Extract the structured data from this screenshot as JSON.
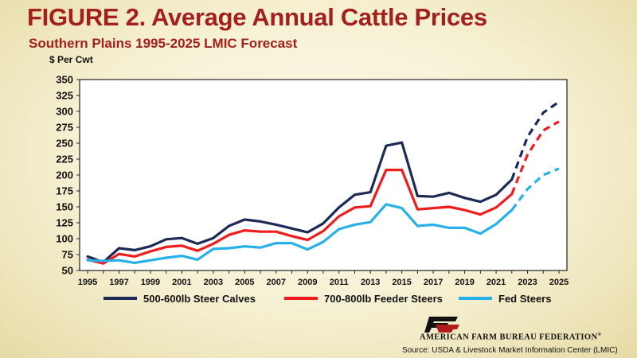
{
  "title": "FIGURE 2. Average Annual Cattle Prices",
  "subtitle": "Southern Plains 1995-2025  LMIC Forecast",
  "organization": "AMERICAN FARM BUREAU FEDERATION",
  "registered_mark": "®",
  "logo_text": "FB",
  "source": "Source:  USDA & Livestock Market Information Center (LMIC)",
  "colors": {
    "title": "#a3201d",
    "steer_calves": "#1b2a57",
    "feeder_steers": "#ee1c1c",
    "fed_steers": "#28b0e8"
  },
  "chart_data": {
    "type": "line",
    "ylabel": "$ Per Cwt",
    "xlabel": "",
    "ylim": [
      50,
      350
    ],
    "xlim": [
      1995,
      2025
    ],
    "yticks": [
      50,
      75,
      100,
      125,
      150,
      175,
      200,
      225,
      250,
      275,
      300,
      325,
      350
    ],
    "xticks": [
      1995,
      1997,
      1999,
      2001,
      2003,
      2005,
      2007,
      2009,
      2011,
      2013,
      2015,
      2017,
      2019,
      2021,
      2023,
      2025
    ],
    "grid": false,
    "legend": "bottom",
    "x": [
      1995,
      1996,
      1997,
      1998,
      1999,
      2000,
      2001,
      2002,
      2003,
      2004,
      2005,
      2006,
      2007,
      2008,
      2009,
      2010,
      2011,
      2012,
      2013,
      2014,
      2015,
      2016,
      2017,
      2018,
      2019,
      2020,
      2021,
      2022,
      2023,
      2024,
      2025
    ],
    "forecast_start": 2022,
    "series": [
      {
        "name": "500-600lb Steer Calves",
        "color": "#1b2a57",
        "values": [
          72,
          63,
          85,
          82,
          88,
          99,
          101,
          92,
          101,
          120,
          130,
          127,
          122,
          116,
          110,
          124,
          149,
          169,
          173,
          246,
          251,
          167,
          166,
          172,
          164,
          158,
          169,
          193,
          260,
          298,
          315
        ]
      },
      {
        "name": "700-800lb Feeder Steers",
        "color": "#ee1c1c",
        "values": [
          67,
          61,
          76,
          72,
          80,
          87,
          89,
          81,
          92,
          106,
          113,
          111,
          111,
          104,
          98,
          112,
          135,
          149,
          151,
          208,
          208,
          146,
          148,
          150,
          145,
          138,
          149,
          170,
          232,
          270,
          284
        ]
      },
      {
        "name": "Fed Steers",
        "color": "#28b0e8",
        "values": [
          66,
          65,
          66,
          62,
          66,
          70,
          73,
          67,
          84,
          85,
          88,
          86,
          93,
          93,
          83,
          95,
          115,
          122,
          126,
          154,
          148,
          120,
          122,
          117,
          117,
          108,
          123,
          145,
          178,
          200,
          210
        ]
      }
    ]
  }
}
